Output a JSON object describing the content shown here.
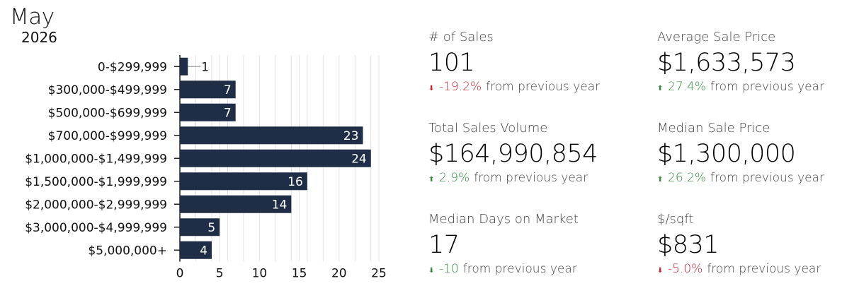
{
  "header": {
    "month": "May",
    "year": "2026"
  },
  "chart_data": {
    "type": "bar",
    "orientation": "horizontal",
    "categories": [
      "0-$299,999",
      "$300,000-$499,999",
      "$500,000-$699,999",
      "$700,000-$999,999",
      "$1,000,000-$1,499,999",
      "$1,500,000-$1,999,999",
      "$2,000,000-$2,999,999",
      "$3,000,000-$4,999,999",
      "$5,000,000+"
    ],
    "values": [
      1,
      7,
      7,
      23,
      24,
      16,
      14,
      5,
      4
    ],
    "value_labels": [
      "1",
      "7",
      "7",
      "23",
      "24",
      "16",
      "14",
      "5",
      "4"
    ],
    "xlim": [
      0,
      25
    ],
    "xticks": [
      "0",
      "5",
      "10",
      "15",
      "20",
      "25"
    ],
    "xtick_values": [
      0,
      5,
      10,
      15,
      20,
      25
    ],
    "grid": true,
    "bar_color": "#1f2d47"
  },
  "stats": {
    "sales": {
      "label": "# of Sales",
      "value": "101",
      "pct": "-19.2%",
      "suffix": "from previous year",
      "arrow": "⬇"
    },
    "avg_price": {
      "label": "Average Sale Price",
      "value": "$1,633,573",
      "pct": "27.4%",
      "suffix": "from previous year",
      "arrow": "⬆"
    },
    "volume": {
      "label": "Total Sales Volume",
      "value": "$164,990,854",
      "pct": "2.9%",
      "suffix": "from previous year",
      "arrow": "⬆"
    },
    "median_price": {
      "label": "Median Sale Price",
      "value": "$1,300,000",
      "pct": "26.2%",
      "suffix": "from previous year",
      "arrow": "⬆"
    },
    "days": {
      "label": "Median Days on Market",
      "value": "17",
      "pct": "-10",
      "suffix": "from previous year",
      "arrow": "⬇"
    },
    "sqft": {
      "label": "$/sqft",
      "value": "$831",
      "pct": "-5.0%",
      "suffix": "from previous year",
      "arrow": "⬇"
    }
  },
  "colors": {
    "negative": "#c0262d",
    "positive": "#2f8a3a",
    "bar": "#1f2d47"
  }
}
